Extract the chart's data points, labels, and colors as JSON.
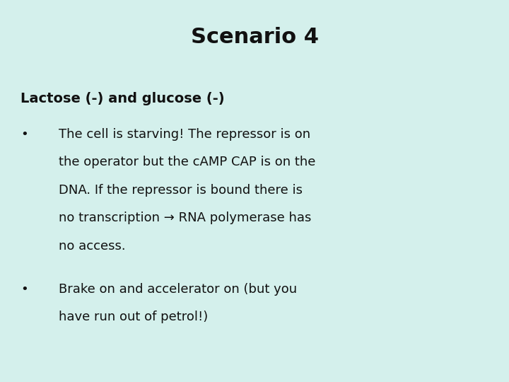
{
  "title": "Scenario 4",
  "background_color": "#d4f0ec",
  "title_fontsize": 22,
  "title_fontweight": "bold",
  "subtitle": "Lactose (-) and glucose (-)",
  "subtitle_fontsize": 14,
  "subtitle_fontweight": "bold",
  "bullet_fontsize": 13,
  "bullet_fontweight": "normal",
  "text_color": "#111111",
  "bullet_char": "•",
  "bullet1_lines": [
    "The cell is starving! The repressor is on",
    "the operator but the cAMP CAP is on the",
    "DNA. If the repressor is bound there is",
    "no transcription → RNA polymerase has",
    "no access."
  ],
  "bullet2_lines": [
    "Brake on and accelerator on (but you",
    "have run out of petrol!)"
  ]
}
